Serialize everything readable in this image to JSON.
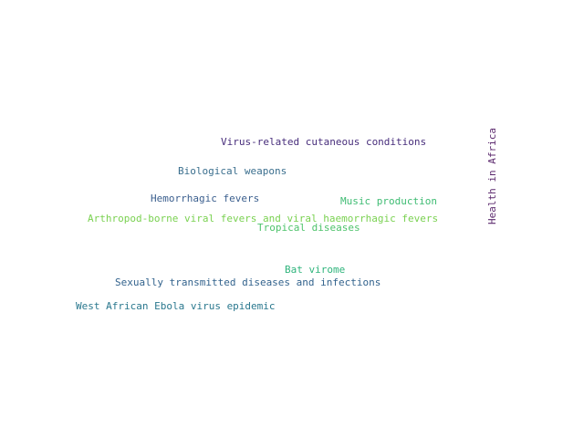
{
  "words": [
    {
      "text": "Virus-related cutaneous conditions",
      "color": "#472d7b"
    },
    {
      "text": "Biological weapons",
      "color": "#3b6f8e"
    },
    {
      "text": "Hemorrhagic fevers",
      "color": "#3b5f8e"
    },
    {
      "text": "Music production",
      "color": "#3fbc73"
    },
    {
      "text": "Arthropod-borne viral fevers and viral haemorrhagic fevers",
      "color": "#7ad151"
    },
    {
      "text": "Tropical diseases",
      "color": "#4ec36b"
    },
    {
      "text": "Bat virome",
      "color": "#2fb47c"
    },
    {
      "text": "Sexually transmitted diseases and infections",
      "color": "#33638d"
    },
    {
      "text": "West African Ebola virus epidemic",
      "color": "#2a788e"
    },
    {
      "text": "Health in Africa",
      "color": "#5c2a6e",
      "orientation": "vertical"
    }
  ]
}
